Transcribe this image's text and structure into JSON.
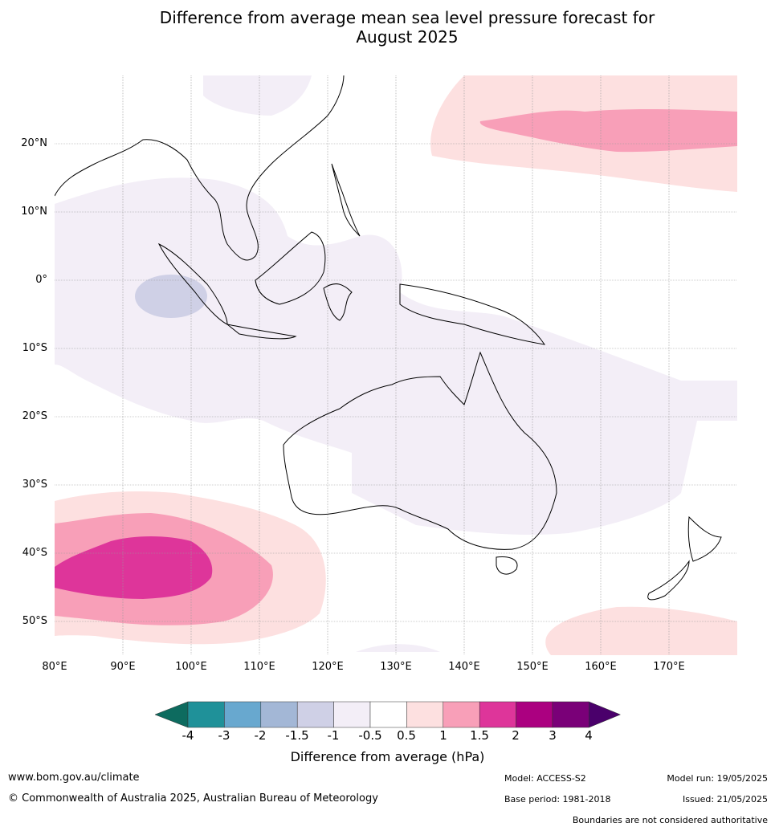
{
  "title_line1": "Difference from average mean sea level pressure forecast for",
  "title_line2": "August 2025",
  "lat_labels": [
    "20°N",
    "10°N",
    "0°",
    "10°S",
    "20°S",
    "30°S",
    "40°S",
    "50°S"
  ],
  "lon_labels": [
    "80°E",
    "90°E",
    "100°E",
    "110°E",
    "120°E",
    "130°E",
    "140°E",
    "150°E",
    "160°E",
    "170°E"
  ],
  "colorbar": {
    "ticks": [
      "-4",
      "-3",
      "-2",
      "-1.5",
      "-1",
      "-0.5",
      "0.5",
      "1",
      "1.5",
      "2",
      "3",
      "4"
    ],
    "colors": [
      "#0d6b5f",
      "#1f9199",
      "#68a8cf",
      "#a3b7d6",
      "#cfd0e6",
      "#f3eef7",
      "#ffffff",
      "#fde0e0",
      "#f89fb8",
      "#de359a",
      "#ab0080",
      "#7a0078",
      "#4a006b"
    ],
    "label": "Difference from average (hPa)"
  },
  "footer": {
    "website": "www.bom.gov.au/climate",
    "copyright": "© Commonwealth of Australia 2025, Australian Bureau of Meteorology",
    "model": "Model: ACCESS-S2",
    "base_period": "Base period: 1981-2018",
    "model_run": "Model run: 19/05/2025",
    "issued": "Issued: 21/05/2025",
    "disclaimer": "Boundaries are not considered authoritative"
  }
}
